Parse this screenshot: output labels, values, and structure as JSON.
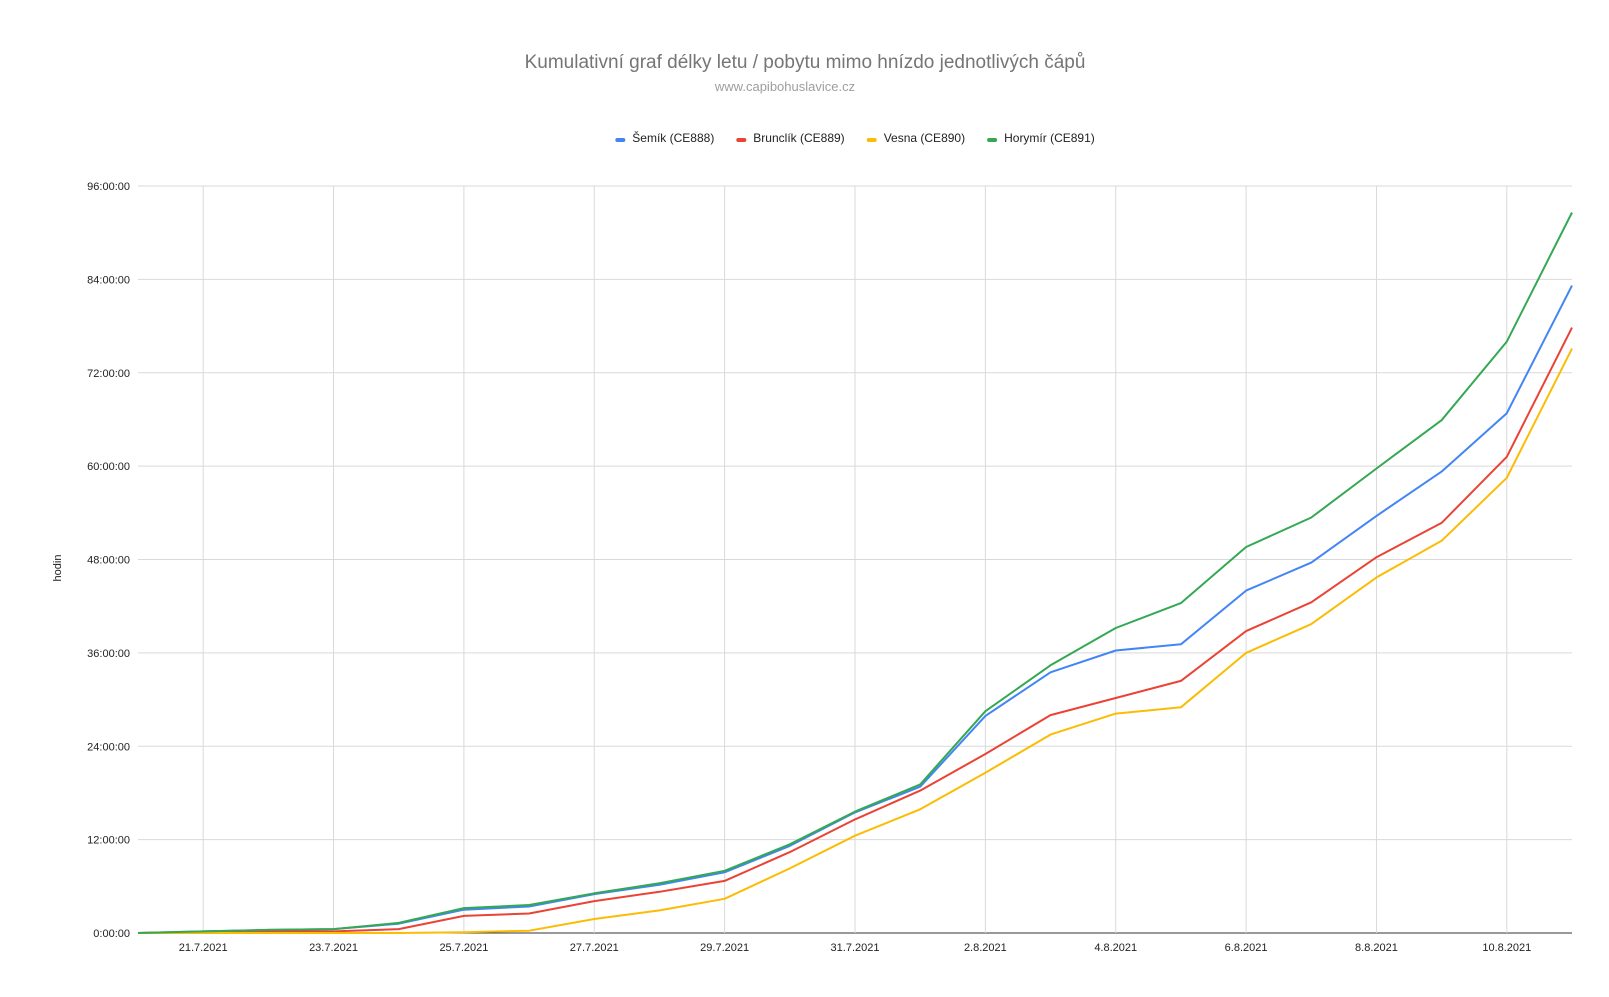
{
  "chart_data": {
    "type": "line",
    "title": "Kumulativní graf délky letu / pobytu mimo hnízdo jednotlivých čápů",
    "subtitle": "www.capibohuslavice.cz",
    "ylabel": "hodin",
    "xlabel": "",
    "ylim": [
      0,
      96
    ],
    "y_tick_values": [
      0,
      12,
      24,
      36,
      48,
      60,
      72,
      84,
      96
    ],
    "y_tick_labels": [
      "0:00:00",
      "12:00:00",
      "24:00:00",
      "36:00:00",
      "48:00:00",
      "60:00:00",
      "72:00:00",
      "84:00:00",
      "96:00:00"
    ],
    "x_dates": [
      "20.7.2021",
      "21.7.2021",
      "22.7.2021",
      "23.7.2021",
      "24.7.2021",
      "25.7.2021",
      "26.7.2021",
      "27.7.2021",
      "28.7.2021",
      "29.7.2021",
      "30.7.2021",
      "31.7.2021",
      "1.8.2021",
      "2.8.2021",
      "3.8.2021",
      "4.8.2021",
      "5.8.2021",
      "6.8.2021",
      "7.8.2021",
      "8.8.2021",
      "9.8.2021",
      "10.8.2021",
      "11.8.2021"
    ],
    "x_tick_labels": [
      "21.7.2021",
      "23.7.2021",
      "25.7.2021",
      "27.7.2021",
      "29.7.2021",
      "31.7.2021",
      "2.8.2021",
      "4.8.2021",
      "6.8.2021",
      "8.8.2021",
      "10.8.2021"
    ],
    "grid": true,
    "legend_position": "top",
    "series": [
      {
        "name": "Šemík (CE888)",
        "color": "#4285f4",
        "values": [
          0,
          0.2,
          0.4,
          0.5,
          1.2,
          3.0,
          3.4,
          5.0,
          6.2,
          7.8,
          11.2,
          15.5,
          18.8,
          27.9,
          33.5,
          36.3,
          37.1,
          44.0,
          47.6,
          53.6,
          59.3,
          66.8,
          83.2
        ]
      },
      {
        "name": "Brunclík (CE889)",
        "color": "#ea4335",
        "values": [
          0,
          0.1,
          0.2,
          0.2,
          0.5,
          2.2,
          2.5,
          4.1,
          5.3,
          6.7,
          10.4,
          14.6,
          18.3,
          23.0,
          28.0,
          30.2,
          32.4,
          38.8,
          42.5,
          48.3,
          52.7,
          61.2,
          77.8
        ]
      },
      {
        "name": "Vesna (CE890)",
        "color": "#fbbc04",
        "values": [
          0,
          0,
          0,
          0,
          0,
          0.1,
          0.3,
          1.8,
          2.9,
          4.4,
          8.3,
          12.5,
          15.9,
          20.6,
          25.5,
          28.2,
          29.0,
          36.0,
          39.7,
          45.7,
          50.4,
          58.5,
          75.1
        ]
      },
      {
        "name": "Horymír (CE891)",
        "color": "#34a853",
        "values": [
          0,
          0.2,
          0.4,
          0.5,
          1.3,
          3.2,
          3.6,
          5.1,
          6.4,
          8.0,
          11.4,
          15.6,
          19.1,
          28.5,
          34.4,
          39.2,
          42.4,
          49.6,
          53.4,
          59.7,
          65.9,
          76.0,
          92.6
        ]
      }
    ]
  }
}
